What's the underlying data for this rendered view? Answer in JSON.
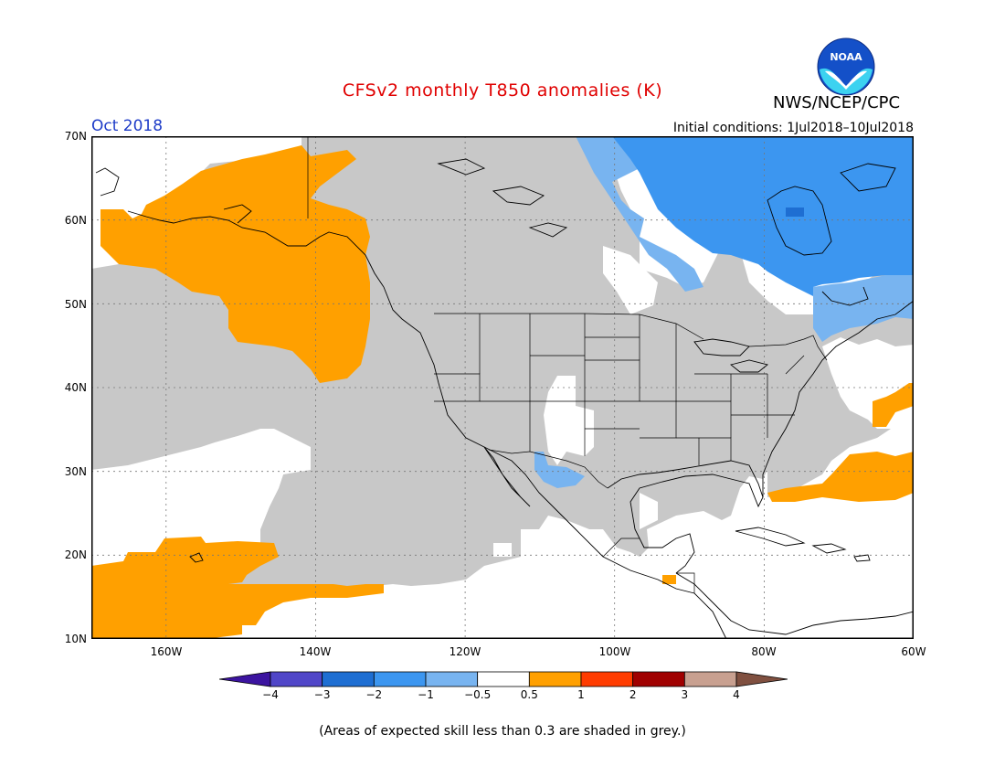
{
  "header": {
    "title": "CFSv2 monthly T850 anomalies (K)",
    "organization": "NWS/NCEP/CPC",
    "logo_text": "NOAA",
    "month": "Oct 2018",
    "initial_conditions": "Initial conditions: 1Jul2018–10Jul2018"
  },
  "map": {
    "latitude_labels": [
      "70N",
      "60N",
      "50N",
      "40N",
      "30N",
      "20N",
      "10N"
    ],
    "longitude_labels": [
      "160W",
      "140W",
      "120W",
      "100W",
      "80W",
      "60W"
    ],
    "colors": {
      "skill_grey": "#c8c8c8",
      "neutral": "#ffffff",
      "warm_0_5_to_1": "#ffa000",
      "cool_minus1_to_minus0_5": "#78b4f0",
      "cool_minus2_to_minus1": "#3c96f0",
      "cool_minus3_to_minus2": "#1e6ed2"
    }
  },
  "colorbar": {
    "labels": [
      "−4",
      "−3",
      "−2",
      "−1",
      "−0.5",
      "0.5",
      "1",
      "2",
      "3",
      "4"
    ],
    "colors": [
      "#3c14a0",
      "#5046c8",
      "#1e6ed2",
      "#3c96f0",
      "#78b4f0",
      "#ffffff",
      "#ffa000",
      "#ff3c00",
      "#a00000",
      "#c8a090",
      "#805040"
    ]
  },
  "footnote": "(Areas of expected skill less than 0.3 are shaded in grey.)"
}
